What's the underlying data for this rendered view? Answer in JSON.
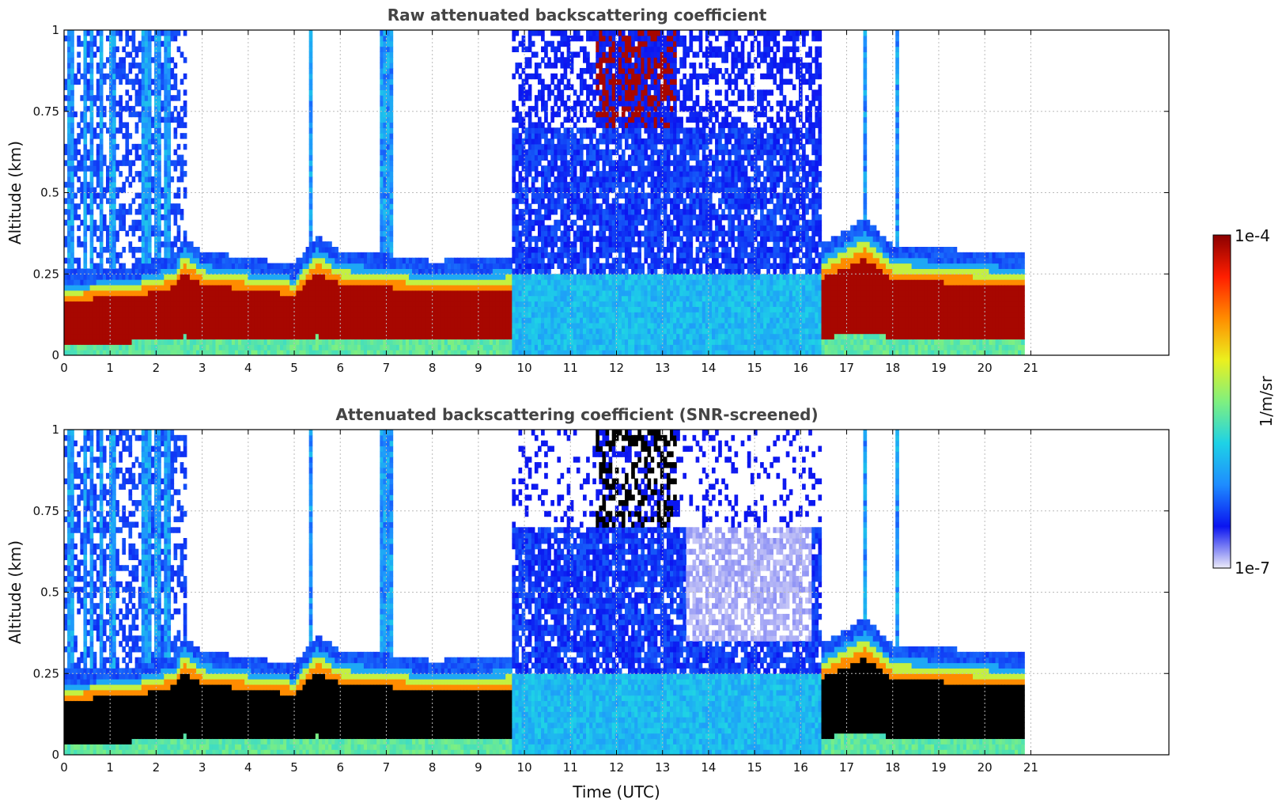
{
  "chart_data": [
    {
      "type": "heatmap",
      "title": "Raw attenuated backscattering coefficient",
      "xlabel": "",
      "ylabel": "Altitude (km)",
      "xlim": [
        0,
        24
      ],
      "ylim": [
        0,
        1
      ],
      "xticks": [
        "0",
        "1",
        "2",
        "3",
        "4",
        "5",
        "6",
        "7",
        "8",
        "9",
        "10",
        "11",
        "12",
        "13",
        "14",
        "15",
        "16",
        "17",
        "18",
        "19",
        "20",
        "21"
      ],
      "yticks": [
        {
          "value": 0,
          "label": "0"
        },
        {
          "value": 0.25,
          "label": "0.25"
        },
        {
          "value": 0.5,
          "label": "0.5"
        },
        {
          "value": 0.75,
          "label": "0.75"
        },
        {
          "value": 1,
          "label": "1"
        }
      ],
      "grid": true,
      "data_end_time": 20.8,
      "boundary_layer_top_km": [
        {
          "t": 0,
          "z": 0.22
        },
        {
          "t": 1.4,
          "z": 0.23
        },
        {
          "t": 2.4,
          "z": 0.27
        },
        {
          "t": 2.6,
          "z": 0.33
        },
        {
          "t": 3,
          "z": 0.28
        },
        {
          "t": 4,
          "z": 0.26
        },
        {
          "t": 5,
          "z": 0.24
        },
        {
          "t": 5.5,
          "z": 0.33
        },
        {
          "t": 6,
          "z": 0.28
        },
        {
          "t": 7,
          "z": 0.27
        },
        {
          "t": 8,
          "z": 0.25
        },
        {
          "t": 9.6,
          "z": 0.26
        },
        {
          "t": 16.4,
          "z": 0.3
        },
        {
          "t": 17.4,
          "z": 0.38
        },
        {
          "t": 18,
          "z": 0.3
        },
        {
          "t": 20.8,
          "z": 0.27
        }
      ]
    },
    {
      "type": "heatmap",
      "title": "Attenuated backscattering coefficient (SNR-screened)",
      "xlabel": "Time (UTC)",
      "ylabel": "Altitude (km)",
      "xlim": [
        0,
        24
      ],
      "ylim": [
        0,
        1
      ],
      "xticks": [
        "0",
        "1",
        "2",
        "3",
        "4",
        "5",
        "6",
        "7",
        "8",
        "9",
        "10",
        "11",
        "12",
        "13",
        "14",
        "15",
        "16",
        "17",
        "18",
        "19",
        "20",
        "21"
      ],
      "yticks": [
        {
          "value": 0,
          "label": "0"
        },
        {
          "value": 0.25,
          "label": "0.25"
        },
        {
          "value": 0.5,
          "label": "0.5"
        },
        {
          "value": 0.75,
          "label": "0.75"
        },
        {
          "value": 1,
          "label": "1"
        }
      ],
      "grid": true,
      "data_end_time": 20.8,
      "saturated_color": "#000000"
    }
  ],
  "colorbar": {
    "label": "1/m/sr",
    "max_label": "1e-4",
    "min_label": "1e-7",
    "scale": "log",
    "colormap": [
      "#ecebf8",
      "#0a14f0",
      "#1e8cff",
      "#1ed2e6",
      "#7ff07f",
      "#ebf01e",
      "#ff8c00",
      "#ff1e00",
      "#8b0000"
    ]
  }
}
